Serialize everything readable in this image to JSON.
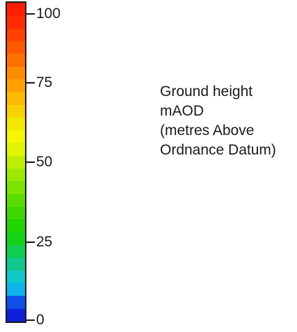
{
  "legend": {
    "caption_lines": [
      "Ground height",
      "mAOD",
      "(metres Above",
      "Ordnance Datum)"
    ],
    "ticks": [
      {
        "value": 100,
        "label": "100"
      },
      {
        "value": 75,
        "label": "75"
      },
      {
        "value": 50,
        "label": "50"
      },
      {
        "value": 25,
        "label": "25"
      },
      {
        "value": 0,
        "label": "0"
      }
    ],
    "range": [
      0,
      100
    ],
    "bands_top_to_bottom": [
      "#ff1e00",
      "#ff2a00",
      "#ff4000",
      "#ff5a00",
      "#ff7000",
      "#ff8c00",
      "#ffa000",
      "#ffb800",
      "#f9d000",
      "#f4e800",
      "#f6f600",
      "#e0f400",
      "#c0ee00",
      "#9ee800",
      "#7ce200",
      "#5cdc00",
      "#3ed800",
      "#22d400",
      "#12d21a",
      "#10ce50",
      "#10c890",
      "#10c8c8",
      "#10b4ec",
      "#1050e8",
      "#1020d8"
    ]
  }
}
